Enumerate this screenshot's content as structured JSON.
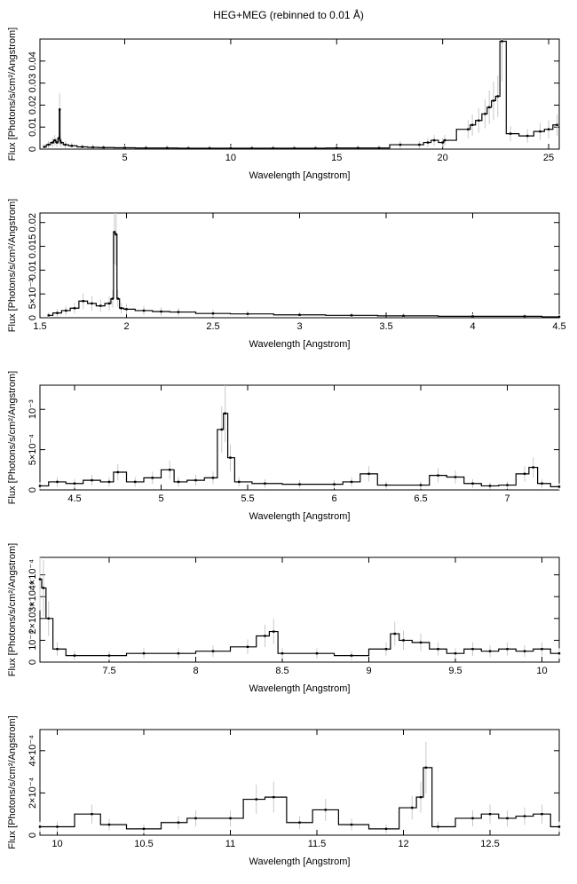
{
  "figure": {
    "title": "HEG+MEG (rebinned to 0.01 Å)"
  },
  "chart_data": [
    {
      "type": "line",
      "xlabel": "Wavelength [Angstrom]",
      "ylabel": "Flux [Photons/s/cm²/Angstrom]",
      "xlim": [
        1.0,
        25.5
      ],
      "ylim": [
        0,
        0.05
      ],
      "xticks": [
        5,
        10,
        15,
        20,
        25
      ],
      "xtick_labels": [
        "5",
        "10",
        "15",
        "20",
        "25"
      ],
      "yticks": [
        0,
        0.01,
        0.02,
        0.03,
        0.04
      ],
      "ytick_labels": [
        "0",
        "0.01",
        "0.02",
        "0.03",
        "0.04"
      ],
      "series": [
        {
          "x": [
            1.2,
            1.4,
            1.6,
            1.7,
            1.8,
            1.9,
            1.93,
            1.96,
            2.0,
            2.2,
            2.5,
            3.0,
            3.5,
            4.0,
            5.0,
            6.0,
            7.0,
            8.0,
            9.0,
            10.0,
            11.0,
            12.0,
            13.0,
            14.0,
            15.0,
            16.0,
            17.0,
            18.0,
            18.9,
            19.3,
            19.6,
            20.0,
            20.1,
            21.2,
            21.4,
            21.7,
            22.0,
            22.2,
            22.4,
            22.6,
            22.8,
            23.2,
            24.0,
            24.6,
            25.0,
            25.4
          ],
          "y": [
            0.001,
            0.002,
            0.003,
            0.004,
            0.003,
            0.005,
            0.018,
            0.004,
            0.003,
            0.002,
            0.0015,
            0.001,
            0.0008,
            0.0007,
            0.0006,
            0.0005,
            0.0005,
            0.0004,
            0.0004,
            0.0004,
            0.0004,
            0.0004,
            0.0004,
            0.0004,
            0.0005,
            0.0005,
            0.0005,
            0.002,
            0.002,
            0.003,
            0.004,
            0.003,
            0.004,
            0.009,
            0.011,
            0.013,
            0.016,
            0.019,
            0.022,
            0.024,
            0.049,
            0.007,
            0.006,
            0.008,
            0.009,
            0.011
          ]
        }
      ]
    },
    {
      "type": "line",
      "xlabel": "Wavelength [Angstrom]",
      "ylabel": "Flux [Photons/s/cm²/Angstrom]",
      "xlim": [
        1.5,
        4.5
      ],
      "ylim": [
        0,
        0.022
      ],
      "xticks": [
        1.5,
        2,
        2.5,
        3,
        3.5,
        4,
        4.5
      ],
      "xtick_labels": [
        "1.5",
        "2",
        "2.5",
        "3",
        "3.5",
        "4",
        "4.5"
      ],
      "yticks": [
        0,
        0.005,
        0.01,
        0.015,
        0.02
      ],
      "ytick_labels": [
        "0",
        "5×10⁻³",
        "0.01",
        "0.015",
        "0.02"
      ],
      "series": [
        {
          "x": [
            1.55,
            1.6,
            1.65,
            1.7,
            1.75,
            1.8,
            1.85,
            1.9,
            1.92,
            1.93,
            1.94,
            1.95,
            1.97,
            2.0,
            2.1,
            2.2,
            2.3,
            2.5,
            2.7,
            3.0,
            3.3,
            3.6,
            4.0,
            4.3,
            4.5
          ],
          "y": [
            0.0005,
            0.001,
            0.0015,
            0.002,
            0.0035,
            0.003,
            0.0025,
            0.003,
            0.004,
            0.018,
            0.0175,
            0.004,
            0.002,
            0.0018,
            0.0015,
            0.0013,
            0.0012,
            0.0009,
            0.0008,
            0.0006,
            0.0005,
            0.0004,
            0.0003,
            0.0003,
            0.0002
          ]
        }
      ]
    },
    {
      "type": "line",
      "xlabel": "Wavelength [Angstrom]",
      "ylabel": "Flux [Photons/s/cm²/Angstrom]",
      "xlim": [
        4.3,
        7.3
      ],
      "ylim": [
        0,
        0.0013
      ],
      "xticks": [
        4.5,
        5,
        5.5,
        6,
        6.5,
        7
      ],
      "xtick_labels": [
        "4.5",
        "5",
        "5.5",
        "6",
        "6.5",
        "7"
      ],
      "yticks": [
        0,
        0.0005,
        0.001
      ],
      "ytick_labels": [
        "0",
        "5×10⁻⁴",
        "10⁻³"
      ],
      "series": [
        {
          "x": [
            4.3,
            4.4,
            4.5,
            4.6,
            4.7,
            4.75,
            4.85,
            4.95,
            5.05,
            5.1,
            5.2,
            5.3,
            5.35,
            5.37,
            5.4,
            5.45,
            5.6,
            5.8,
            6.0,
            6.1,
            6.2,
            6.3,
            6.5,
            6.6,
            6.7,
            6.8,
            6.9,
            7.0,
            7.1,
            7.15,
            7.2,
            7.3
          ],
          "y": [
            5e-05,
            0.0001,
            8e-05,
            0.00012,
            0.0001,
            0.00022,
            0.0001,
            0.00015,
            0.00025,
            0.0001,
            0.00012,
            0.00015,
            0.00075,
            0.00095,
            0.0004,
            0.0001,
            8e-05,
            7e-05,
            7e-05,
            0.0001,
            0.0002,
            6e-05,
            6e-05,
            0.00018,
            0.00016,
            8e-05,
            5e-05,
            6e-05,
            0.0002,
            0.00028,
            8e-05,
            4e-05
          ]
        }
      ]
    },
    {
      "type": "line",
      "xlabel": "Wavelength [Angstrom]",
      "ylabel": "Flux [Photons/s/cm²/Angstrom]",
      "xlim": [
        7.1,
        10.1
      ],
      "ylim": [
        0,
        0.00048
      ],
      "xticks": [
        7.5,
        8,
        8.5,
        9,
        9.5,
        10
      ],
      "xtick_labels": [
        "7.5",
        "8",
        "8.5",
        "9",
        "9.5",
        "10"
      ],
      "yticks": [
        0,
        0.0001,
        0.0002,
        0.0003,
        0.0004
      ],
      "ytick_labels": [
        "0",
        "10⁻⁴",
        "2×10⁻⁴",
        "3×10⁻⁴",
        "4×10⁻⁴"
      ],
      "series": [
        {
          "x": [
            7.1,
            7.12,
            7.15,
            7.2,
            7.3,
            7.5,
            7.7,
            7.9,
            8.1,
            8.3,
            8.4,
            8.45,
            8.5,
            8.7,
            8.9,
            9.1,
            9.15,
            9.2,
            9.3,
            9.4,
            9.5,
            9.6,
            9.7,
            9.8,
            9.9,
            10.0,
            10.1
          ],
          "y": [
            0.00038,
            0.00034,
            0.0002,
            6e-05,
            3e-05,
            3e-05,
            4e-05,
            4e-05,
            5e-05,
            7e-05,
            0.00012,
            0.00014,
            4e-05,
            4e-05,
            3e-05,
            6e-05,
            0.00013,
            0.0001,
            9e-05,
            6e-05,
            4e-05,
            6e-05,
            5e-05,
            6e-05,
            5e-05,
            6e-05,
            4e-05
          ]
        }
      ]
    },
    {
      "type": "line",
      "xlabel": "Wavelength [Angstrom]",
      "ylabel": "Flux [Photons/s/cm²/Angstrom]",
      "xlim": [
        9.9,
        12.9
      ],
      "ylim": [
        0,
        0.0005
      ],
      "xticks": [
        10,
        10.5,
        11,
        11.5,
        12,
        12.5
      ],
      "xtick_labels": [
        "10",
        "10.5",
        "11",
        "11.5",
        "12",
        "12.5"
      ],
      "yticks": [
        0,
        0.0002,
        0.0004
      ],
      "ytick_labels": [
        "0",
        "2×10⁻⁴",
        "4×10⁻⁴"
      ],
      "series": [
        {
          "x": [
            9.9,
            10.0,
            10.2,
            10.3,
            10.5,
            10.7,
            10.8,
            11.0,
            11.15,
            11.25,
            11.4,
            11.55,
            11.7,
            11.9,
            12.05,
            12.1,
            12.13,
            12.2,
            12.4,
            12.5,
            12.6,
            12.7,
            12.8,
            12.9
          ],
          "y": [
            4e-05,
            4e-05,
            0.0001,
            5e-05,
            3e-05,
            6e-05,
            8e-05,
            8e-05,
            0.00017,
            0.00018,
            6e-05,
            0.00012,
            5e-05,
            3e-05,
            0.00013,
            0.00018,
            0.00032,
            4e-05,
            8e-05,
            0.0001,
            8e-05,
            9e-05,
            0.0001,
            4e-05
          ]
        }
      ]
    }
  ]
}
